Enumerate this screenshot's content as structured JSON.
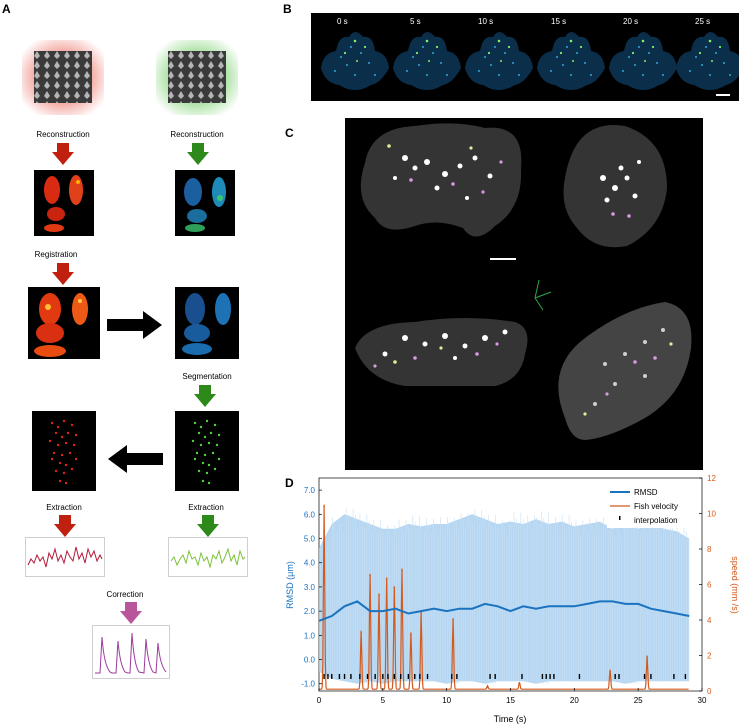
{
  "panels": {
    "a": "A",
    "b": "B",
    "c": "C",
    "d": "D"
  },
  "flow": {
    "reconstruction_left": "Reconstruction",
    "reconstruction_right": "Reconstruction",
    "registration": "Registration",
    "segmentation": "Segmentation",
    "extraction_left": "Extraction",
    "extraction_right": "Extraction",
    "correction": "Correction"
  },
  "timelapse": {
    "labels": [
      "0 s",
      "5 s",
      "10 s",
      "15 s",
      "20 s",
      "25 s"
    ]
  },
  "colors": {
    "red_arrow": "#c0200f",
    "green_arrow": "#2d8a1a",
    "magenta_arrow": "#b9559b",
    "rmsd": "#1a73c0",
    "rmsd_band": "#a9cfee",
    "velocity": "#d45a1c"
  },
  "chart_data": {
    "type": "line",
    "xlabel": "Time (s)",
    "ylabel_left": "RMSD (μm)",
    "ylabel_right": "speed (mm /s)",
    "xlim": [
      0,
      30
    ],
    "ylim_left": [
      -1.3,
      7.5
    ],
    "ylim_right": [
      0,
      12
    ],
    "x_ticks": [
      "0",
      "5",
      "10",
      "15",
      "20",
      "25",
      "30"
    ],
    "y_left_ticks": [
      "7.0",
      "6.0",
      "5.0",
      "4.0",
      "3.0",
      "2.0",
      "1.0",
      "0.0",
      "-1.0"
    ],
    "y_right_ticks": [
      "12",
      "10",
      "8",
      "6",
      "4",
      "2",
      "0"
    ],
    "legend_placement": "top-right",
    "series": [
      {
        "name": "RMSD",
        "axis": "left",
        "x": [
          0,
          1,
          2,
          3,
          4,
          5,
          6,
          7,
          8,
          9,
          10,
          11,
          12,
          13,
          14,
          15,
          16,
          17,
          18,
          19,
          20,
          21,
          22,
          23,
          24,
          25,
          26,
          27,
          28,
          29
        ],
        "values": [
          1.6,
          1.8,
          2.2,
          2.4,
          2.0,
          2.0,
          2.1,
          1.9,
          2.0,
          2.1,
          2.0,
          2.1,
          2.1,
          2.3,
          2.2,
          2.0,
          2.2,
          2.1,
          2.2,
          2.2,
          2.2,
          2.3,
          2.4,
          2.4,
          2.3,
          2.3,
          2.1,
          2.0,
          1.9,
          1.8
        ],
        "band_low": [
          -0.5,
          -0.8,
          -0.9,
          -1.0,
          -0.9,
          -1.0,
          -0.9,
          -0.9,
          -0.9,
          -0.9,
          -1.0,
          -0.9,
          -0.9,
          -1.0,
          -0.9,
          -0.9,
          -0.9,
          -1.0,
          -0.9,
          -0.9,
          -0.9,
          -0.9,
          -0.9,
          -0.9,
          -1.0,
          -0.9,
          -0.9,
          -0.9,
          -0.9,
          -0.9
        ],
        "band_high": [
          4.6,
          5.6,
          6.0,
          5.8,
          5.6,
          5.4,
          5.4,
          5.6,
          5.5,
          5.6,
          5.6,
          5.8,
          6.0,
          5.8,
          5.6,
          5.7,
          5.6,
          5.8,
          5.6,
          5.7,
          5.5,
          5.6,
          5.7,
          5.4,
          5.6,
          5.4,
          5.6,
          5.4,
          5.3,
          5.0
        ]
      },
      {
        "name": "Fish velocity",
        "axis": "right",
        "baseline": 0.1,
        "peaks": [
          {
            "t": 0.4,
            "v": 10.4
          },
          {
            "t": 3.3,
            "v": 3.3
          },
          {
            "t": 4.0,
            "v": 6.5
          },
          {
            "t": 4.7,
            "v": 5.4
          },
          {
            "t": 5.3,
            "v": 6.3
          },
          {
            "t": 5.9,
            "v": 5.8
          },
          {
            "t": 6.5,
            "v": 6.8
          },
          {
            "t": 7.2,
            "v": 3.2
          },
          {
            "t": 8.0,
            "v": 4.4
          },
          {
            "t": 10.5,
            "v": 4.0
          },
          {
            "t": 13.2,
            "v": 0.2
          },
          {
            "t": 15.7,
            "v": 0.4
          },
          {
            "t": 22.8,
            "v": 1.1
          },
          {
            "t": 25.7,
            "v": 1.9
          }
        ]
      },
      {
        "name": "interpolation",
        "axis": "left",
        "y": -0.7,
        "x": [
          0.4,
          0.7,
          1.0,
          1.6,
          2.0,
          2.5,
          3.2,
          3.8,
          4.4,
          5.0,
          5.4,
          5.9,
          6.4,
          7.0,
          7.5,
          7.9,
          8.5,
          10.4,
          10.8,
          13.4,
          13.8,
          15.9,
          17.5,
          17.8,
          18.1,
          18.4,
          20.4,
          23.2,
          23.5,
          25.5,
          26.0,
          27.8,
          28.7
        ]
      }
    ]
  }
}
